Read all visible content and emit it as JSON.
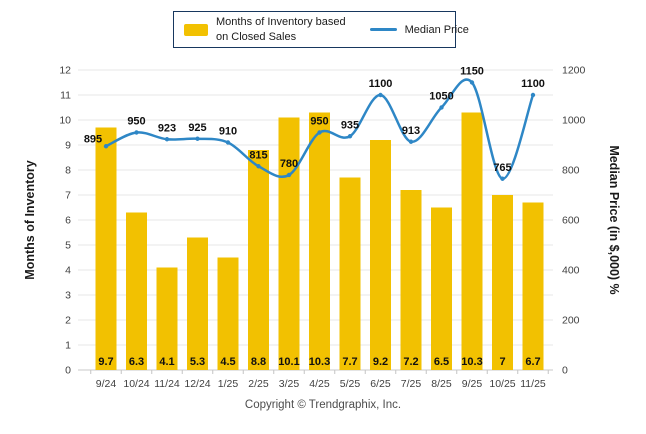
{
  "legend": {
    "bar_series_label_line1": "Months of Inventory based",
    "bar_series_label_line2": "on Closed Sales",
    "line_series_label": "Median Price"
  },
  "footer": {
    "copyright": "Copyright © Trendgraphix, Inc."
  },
  "chart_data": {
    "type": "bar+line",
    "categories": [
      "9/24",
      "10/24",
      "11/24",
      "12/24",
      "1/25",
      "2/25",
      "3/25",
      "4/25",
      "5/25",
      "6/25",
      "7/25",
      "8/25",
      "9/25",
      "10/25",
      "11/25"
    ],
    "series": [
      {
        "name": "Months of Inventory based on Closed Sales",
        "type": "bar",
        "axis": "left",
        "color": "#F2C101",
        "values": [
          9.7,
          6.3,
          4.1,
          5.3,
          4.5,
          8.8,
          10.1,
          10.3,
          7.7,
          9.2,
          7.2,
          6.5,
          10.3,
          7,
          6.7
        ]
      },
      {
        "name": "Median Price",
        "type": "line",
        "axis": "right",
        "color": "#2E87C6",
        "values": [
          895,
          950,
          923,
          925,
          910,
          815,
          780,
          950,
          935,
          1100,
          913,
          1050,
          1150,
          765,
          1100
        ]
      }
    ],
    "left_axis": {
      "title": "Months of Inventory",
      "min": 0,
      "max": 12,
      "step": 1
    },
    "right_axis": {
      "title": "Median Price (in $,000) %",
      "min": 0,
      "max": 1200,
      "step": 200
    },
    "grid": true,
    "legend_position": "top",
    "data_labels": true
  }
}
